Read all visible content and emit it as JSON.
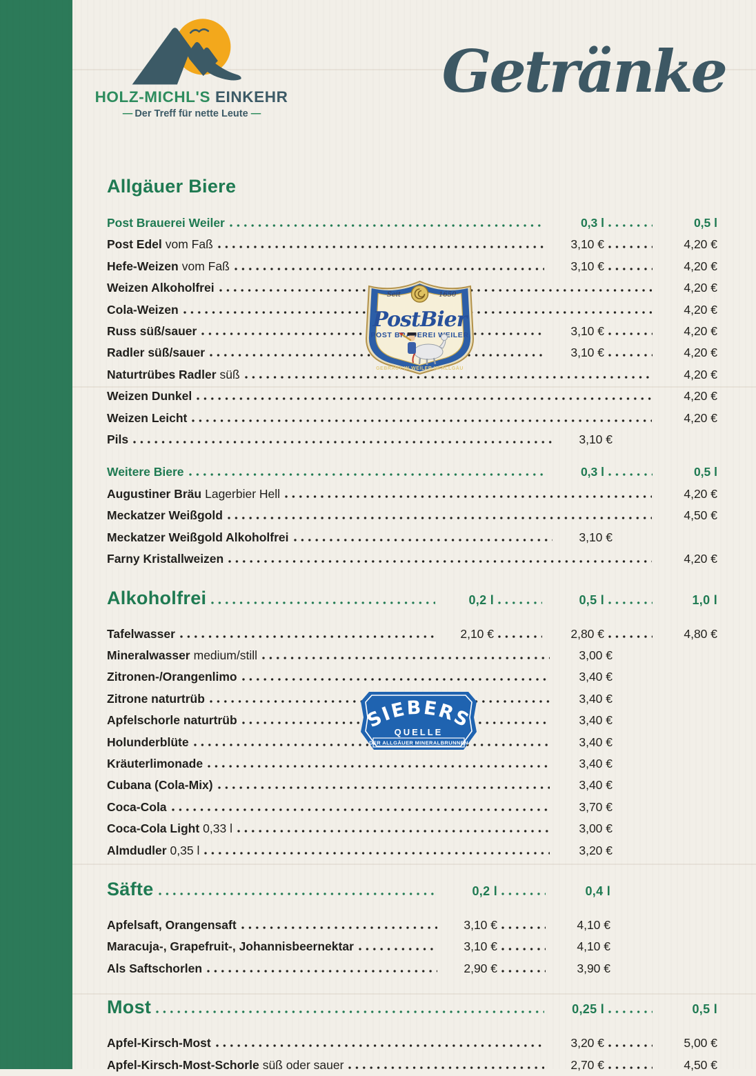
{
  "brand": {
    "name_primary": "HOLZ-MICHL'S",
    "name_secondary": "EINKEHR",
    "tagline": "Der Treff für nette Leute",
    "dash": "—"
  },
  "page_title": "Getränke",
  "colors": {
    "accent_green": "#1f7a52",
    "sidebar_green": "#2c7a59",
    "slate": "#3c5a66",
    "sun_orange": "#f3a81c",
    "text": "#201f1c",
    "postbier_blue": "#2c5ea7",
    "siebers_blue": "#1f63b0",
    "background": "#f2efe8"
  },
  "badges": {
    "postbier": {
      "seit": "Seit",
      "year": "1650",
      "name": "PostBier",
      "subtitle": "POST BRAUEREI WEILER",
      "footer": "GEBRAUT IN WEILER IM ALLGÄU"
    },
    "siebers": {
      "name": "SIEBERS",
      "sub": "QUELLE",
      "footer": "DER ALLGÄUER MINERALBRUNNEN"
    }
  },
  "menu": {
    "sections": [
      {
        "heading": "Allgäuer Biere",
        "sizes": [],
        "groups": [
          {
            "subheader": "Post Brauerei Weiler",
            "sizes": [
              "0,3 l",
              "0,5 l"
            ],
            "rows": [
              {
                "name": "Post Edel",
                "desc": "vom Faß",
                "prices": [
                  "3,10 €",
                  "4,20 €"
                ]
              },
              {
                "name": "Hefe-Weizen",
                "desc": "vom Faß",
                "prices": [
                  "3,10 €",
                  "4,20 €"
                ]
              },
              {
                "name": "Weizen Alkoholfrei",
                "desc": "",
                "prices": [
                  null,
                  "4,20 €"
                ]
              },
              {
                "name": "Cola-Weizen",
                "desc": "",
                "prices": [
                  null,
                  "4,20 €"
                ]
              },
              {
                "name": "Russ süß/sauer",
                "desc": "",
                "prices": [
                  "3,10 €",
                  "4,20 €"
                ]
              },
              {
                "name": "Radler süß/sauer",
                "desc": "",
                "prices": [
                  "3,10 €",
                  "4,20 €"
                ]
              },
              {
                "name": "Naturtrübes Radler",
                "desc": "süß",
                "prices": [
                  null,
                  "4,20 €"
                ]
              },
              {
                "name": "Weizen Dunkel",
                "desc": "",
                "prices": [
                  null,
                  "4,20 €"
                ]
              },
              {
                "name": "Weizen Leicht",
                "desc": "",
                "prices": [
                  null,
                  "4,20 €"
                ]
              },
              {
                "name": "Pils",
                "desc": "",
                "prices": [
                  "3,10 €",
                  null
                ]
              }
            ]
          },
          {
            "subheader": "Weitere Biere",
            "sizes": [
              "0,3 l",
              "0,5 l"
            ],
            "rows": [
              {
                "name": "Augustiner Bräu",
                "desc": "Lagerbier Hell",
                "prices": [
                  null,
                  "4,20 €"
                ]
              },
              {
                "name": "Meckatzer Weißgold",
                "desc": "",
                "prices": [
                  null,
                  "4,50 €"
                ]
              },
              {
                "name": "Meckatzer Weißgold Alkoholfrei",
                "desc": "",
                "prices": [
                  "3,10 €",
                  null
                ]
              },
              {
                "name": "Farny Kristallweizen",
                "desc": "",
                "prices": [
                  null,
                  "4,20 €"
                ]
              }
            ]
          }
        ]
      },
      {
        "heading": "Alkoholfrei",
        "sizes": [
          "0,2 l",
          "0,5 l",
          "1,0 l"
        ],
        "groups": [
          {
            "rows": [
              {
                "name": "Tafelwasser",
                "desc": "",
                "prices": [
                  "2,10 €",
                  "2,80 €",
                  "4,80 €"
                ]
              },
              {
                "name": "Mineralwasser",
                "desc": "medium/still",
                "prices": [
                  null,
                  "3,00 €",
                  null
                ]
              },
              {
                "name": "Zitronen-/Orangenlimo",
                "desc": "",
                "prices": [
                  null,
                  "3,40 €",
                  null
                ]
              },
              {
                "name": "Zitrone naturtrüb",
                "desc": "",
                "prices": [
                  null,
                  "3,40 €",
                  null
                ]
              },
              {
                "name": "Apfelschorle naturtrüb",
                "desc": "",
                "prices": [
                  null,
                  "3,40 €",
                  null
                ]
              },
              {
                "name": "Holunderblüte",
                "desc": "",
                "prices": [
                  null,
                  "3,40 €",
                  null
                ]
              },
              {
                "name": "Kräuterlimonade",
                "desc": "",
                "prices": [
                  null,
                  "3,40 €",
                  null
                ]
              },
              {
                "name": "Cubana (Cola-Mix)",
                "desc": "",
                "prices": [
                  null,
                  "3,40 €",
                  null
                ]
              },
              {
                "name": "Coca-Cola",
                "desc": "",
                "prices": [
                  null,
                  "3,70 €",
                  null
                ]
              },
              {
                "name": "Coca-Cola Light",
                "desc": "0,33 l",
                "prices": [
                  null,
                  "3,00 €",
                  null
                ]
              },
              {
                "name": "Almdudler",
                "desc": "0,35 l",
                "prices": [
                  null,
                  "3,20 €",
                  null
                ]
              }
            ]
          }
        ]
      },
      {
        "heading": "Säfte",
        "sizes": [
          "0,2 l",
          "0,4 l"
        ],
        "narrow": true,
        "groups": [
          {
            "rows": [
              {
                "name": "Apfelsaft, Orangensaft",
                "desc": "",
                "prices": [
                  "3,10 €",
                  "4,10 €"
                ]
              },
              {
                "name": "Maracuja-, Grapefruit-, Johannisbeernektar",
                "desc": "",
                "prices": [
                  "3,10 €",
                  "4,10 €"
                ]
              },
              {
                "name": "Als Saftschorlen",
                "desc": "",
                "prices": [
                  "2,90 €",
                  "3,90 €"
                ]
              }
            ]
          }
        ]
      },
      {
        "heading": "Most",
        "sizes": [
          "0,25 l",
          "0,5 l"
        ],
        "groups": [
          {
            "rows": [
              {
                "name": "Apfel-Kirsch-Most",
                "desc": "",
                "prices": [
                  "3,20 €",
                  "5,00 €"
                ]
              },
              {
                "name": "Apfel-Kirsch-Most-Schorle",
                "desc": "süß oder sauer",
                "prices": [
                  "2,70 €",
                  "4,50 €"
                ]
              }
            ]
          }
        ]
      }
    ]
  }
}
